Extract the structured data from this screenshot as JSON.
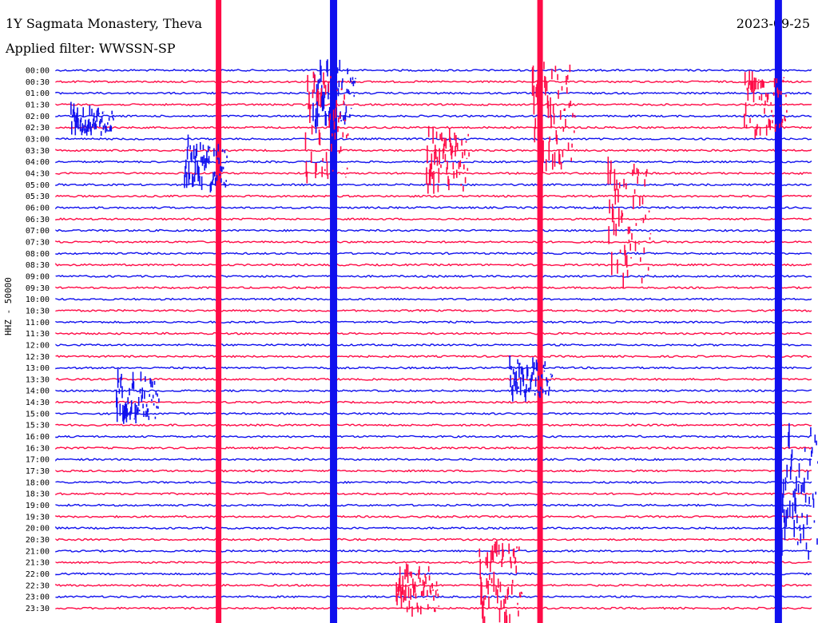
{
  "header": {
    "title": "1Y Sagmata Monastery, Theva",
    "filter": "Applied filter: WWSSN-SP",
    "date": "2023-09-25"
  },
  "colors": {
    "blue": "#1010ee",
    "red": "#ff0a46"
  },
  "chart_data": {
    "type": "line",
    "title": "1Y Sagmata Monastery, Theva",
    "subtitle": "Applied filter: WWSSN-SP",
    "date": "2023-09-25",
    "ylabel": "HHZ - 50000",
    "xlabel": "",
    "grid": false,
    "tick_labels": [
      "00:00",
      "00:30",
      "01:00",
      "01:30",
      "02:00",
      "02:30",
      "03:00",
      "03:30",
      "04:00",
      "04:30",
      "05:00",
      "05:30",
      "06:00",
      "06:30",
      "07:00",
      "07:30",
      "08:00",
      "08:30",
      "09:00",
      "09:30",
      "10:00",
      "10:30",
      "11:00",
      "11:30",
      "12:00",
      "12:30",
      "13:00",
      "13:30",
      "14:00",
      "14:30",
      "15:00",
      "15:30",
      "16:00",
      "16:30",
      "17:00",
      "17:30",
      "18:00",
      "18:30",
      "19:00",
      "19:30",
      "20:00",
      "20:30",
      "21:00",
      "21:30",
      "22:00",
      "22:30",
      "23:00",
      "23:30"
    ],
    "series_colors": [
      "blue",
      "red"
    ],
    "events": [
      {
        "t": 0.215,
        "row": 0,
        "span": 48,
        "amp": 1.0,
        "color": "red"
      },
      {
        "t": 0.367,
        "row": 0,
        "span": 48,
        "amp": 1.0,
        "color": "blue"
      },
      {
        "t": 0.64,
        "row": 0,
        "span": 48,
        "amp": 1.0,
        "color": "red"
      },
      {
        "t": 0.955,
        "row": 0,
        "span": 48,
        "amp": 1.0,
        "color": "blue"
      },
      {
        "t": 0.34,
        "row": 0,
        "span": 4,
        "amp": 0.8,
        "color": "blue"
      },
      {
        "t": 0.63,
        "row": 0,
        "span": 8,
        "amp": 0.9,
        "color": "red"
      },
      {
        "t": 0.955,
        "row": 32,
        "span": 10,
        "amp": 0.9,
        "color": "blue"
      },
      {
        "t": 0.02,
        "row": 4,
        "span": 1,
        "amp": 0.5,
        "color": "blue"
      },
      {
        "t": 0.33,
        "row": 1,
        "span": 8,
        "amp": 0.6,
        "color": "red"
      },
      {
        "t": 0.49,
        "row": 6,
        "span": 4,
        "amp": 0.7,
        "color": "red"
      },
      {
        "t": 0.17,
        "row": 7,
        "span": 3,
        "amp": 0.6,
        "color": "blue"
      },
      {
        "t": 0.73,
        "row": 9,
        "span": 9,
        "amp": 0.7,
        "color": "red"
      },
      {
        "t": 0.91,
        "row": 1,
        "span": 4,
        "amp": 0.5,
        "color": "red"
      },
      {
        "t": 0.08,
        "row": 27,
        "span": 3,
        "amp": 0.6,
        "color": "blue"
      },
      {
        "t": 0.6,
        "row": 26,
        "span": 2,
        "amp": 0.6,
        "color": "blue"
      },
      {
        "t": 0.56,
        "row": 42,
        "span": 6,
        "amp": 0.9,
        "color": "red"
      },
      {
        "t": 0.45,
        "row": 44,
        "span": 3,
        "amp": 0.6,
        "color": "red"
      }
    ]
  }
}
